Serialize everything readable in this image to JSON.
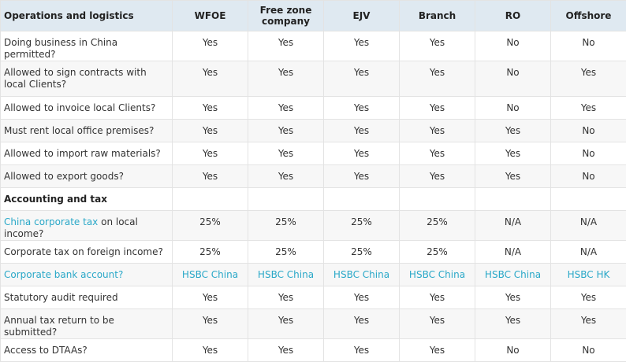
{
  "colors": {
    "header_bg": "#dfe9f1",
    "link": "#2aa8c8"
  },
  "headers": [
    "Operations and logistics",
    "WFOE",
    "Free zone company",
    "EJV",
    "Branch",
    "RO",
    "Offshore"
  ],
  "rows": [
    {
      "type": "data",
      "label": "Doing business in China permitted?",
      "values": [
        "Yes",
        "Yes",
        "Yes",
        "Yes",
        "No",
        "No"
      ]
    },
    {
      "type": "data",
      "label": "Allowed to sign contracts with local Clients?",
      "values": [
        "Yes",
        "Yes",
        "Yes",
        "Yes",
        "No",
        "Yes"
      ]
    },
    {
      "type": "data",
      "label": "Allowed to invoice local Clients?",
      "values": [
        "Yes",
        "Yes",
        "Yes",
        "Yes",
        "No",
        "Yes"
      ]
    },
    {
      "type": "data",
      "label": "Must rent local office premises?",
      "values": [
        "Yes",
        "Yes",
        "Yes",
        "Yes",
        "Yes",
        "No"
      ]
    },
    {
      "type": "data",
      "label": "Allowed to import raw materials?",
      "values": [
        "Yes",
        "Yes",
        "Yes",
        "Yes",
        "Yes",
        "No"
      ]
    },
    {
      "type": "data",
      "label": "Allowed to export goods?",
      "values": [
        "Yes",
        "Yes",
        "Yes",
        "Yes",
        "Yes",
        "No"
      ]
    },
    {
      "type": "section",
      "label": "Accounting and tax",
      "values": [
        "",
        "",
        "",
        "",
        "",
        ""
      ]
    },
    {
      "type": "data",
      "label_link": "China corporate tax",
      "label": " on local income?",
      "values": [
        "25%",
        "25%",
        "25%",
        "25%",
        "N/A",
        "N/A"
      ]
    },
    {
      "type": "data",
      "label": "Corporate tax on foreign income?",
      "values": [
        "25%",
        "25%",
        "25%",
        "25%",
        "N/A",
        "N/A"
      ]
    },
    {
      "type": "data",
      "label_link": "Corporate bank account?",
      "label": "",
      "links": true,
      "values": [
        "HSBC China",
        "HSBC China",
        "HSBC China",
        "HSBC China",
        "HSBC China",
        "HSBC HK"
      ]
    },
    {
      "type": "data",
      "label": "Statutory audit required",
      "values": [
        "Yes",
        "Yes",
        "Yes",
        "Yes",
        "Yes",
        "Yes"
      ]
    },
    {
      "type": "data",
      "label": "Annual tax return to be submitted?",
      "values": [
        "Yes",
        "Yes",
        "Yes",
        "Yes",
        "Yes",
        "Yes"
      ]
    },
    {
      "type": "data",
      "label": "Access to DTAAs?",
      "values": [
        "Yes",
        "Yes",
        "Yes",
        "Yes",
        "No",
        "No"
      ]
    }
  ]
}
